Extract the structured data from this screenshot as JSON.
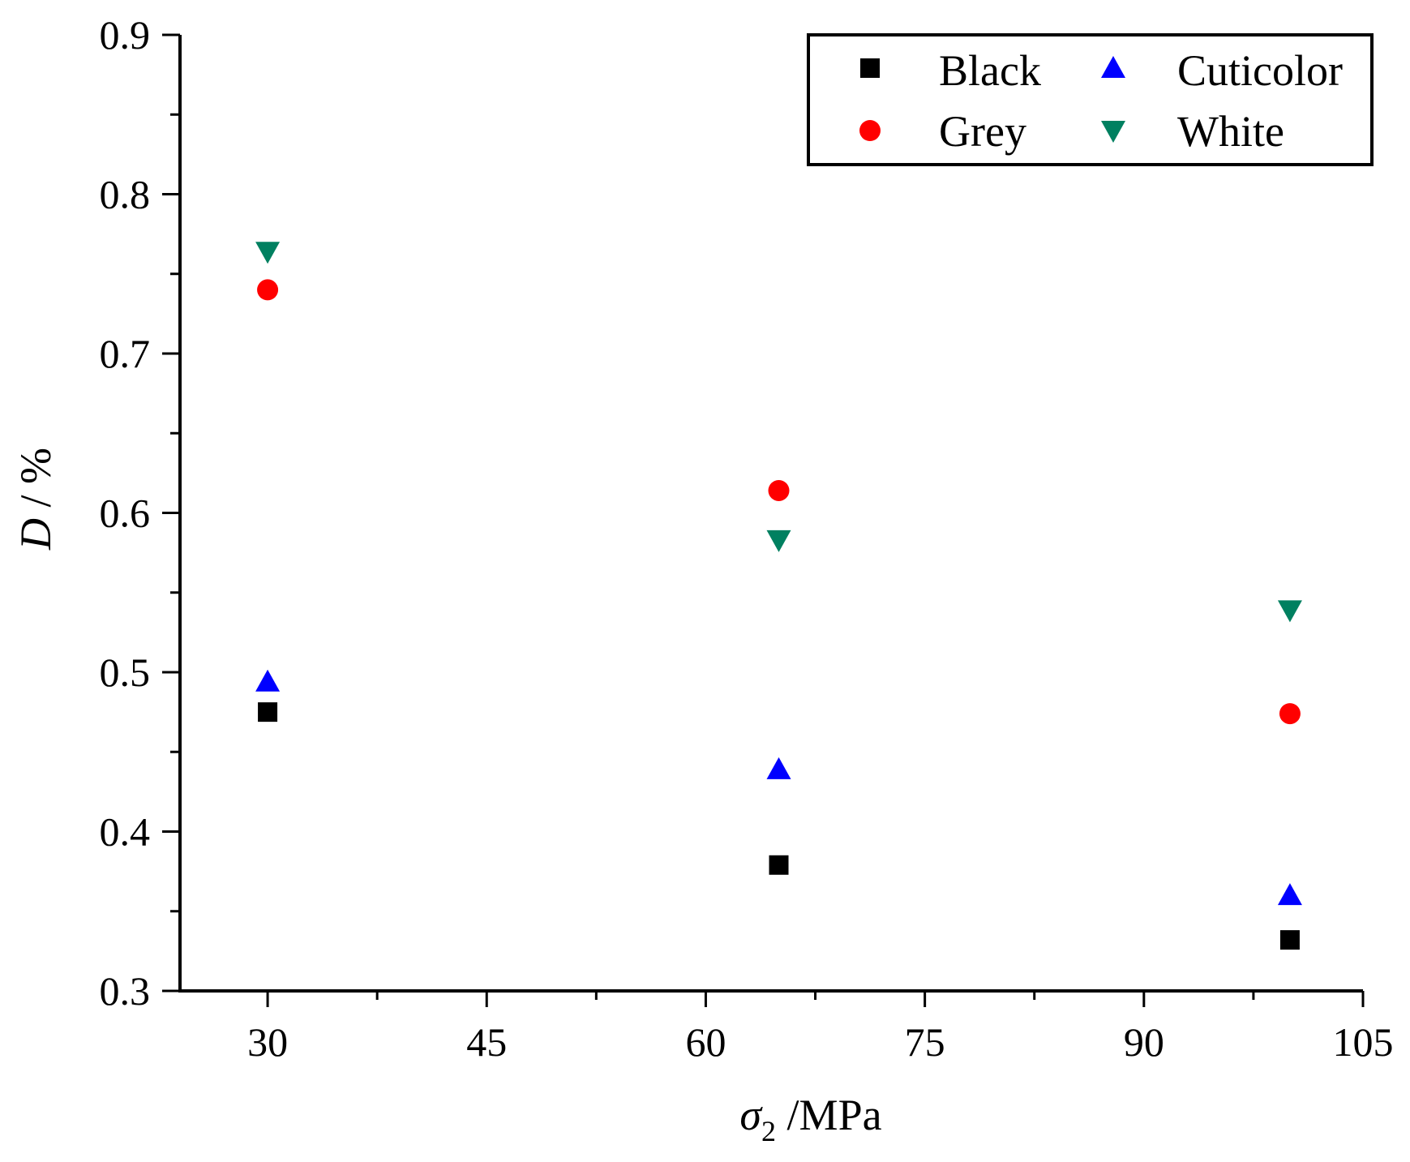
{
  "chart_data": {
    "type": "scatter",
    "title": "",
    "xlabel": {
      "symbol": "σ",
      "subscript": "2",
      "unit": " /MPa"
    },
    "ylabel": {
      "symbol": "D",
      "unit": " / %"
    },
    "xlim": [
      24,
      105
    ],
    "ylim": [
      0.3,
      0.9
    ],
    "xticks": [
      30,
      45,
      60,
      75,
      90,
      105
    ],
    "yticks": [
      0.3,
      0.4,
      0.5,
      0.6,
      0.7,
      0.8,
      0.9
    ],
    "xtick_labels": [
      "30",
      "45",
      "60",
      "75",
      "90",
      "105"
    ],
    "ytick_labels": [
      "0.3",
      "0.4",
      "0.5",
      "0.6",
      "0.7",
      "0.8",
      "0.9"
    ],
    "grid": false,
    "legend_position": "top-right",
    "series": [
      {
        "name": "Black",
        "marker": "square",
        "color": "#000000",
        "x": [
          30,
          65,
          100
        ],
        "y": [
          0.475,
          0.379,
          0.332
        ]
      },
      {
        "name": "Grey",
        "marker": "circle",
        "color": "#ff0000",
        "x": [
          30,
          65,
          100
        ],
        "y": [
          0.74,
          0.614,
          0.474
        ]
      },
      {
        "name": "Cuticolor",
        "marker": "triangle-up",
        "color": "#0000ff",
        "x": [
          30,
          65,
          100
        ],
        "y": [
          0.494,
          0.439,
          0.36
        ]
      },
      {
        "name": "White",
        "marker": "triangle-down",
        "color": "#008060",
        "x": [
          30,
          65,
          100
        ],
        "y": [
          0.764,
          0.583,
          0.539
        ]
      }
    ]
  }
}
